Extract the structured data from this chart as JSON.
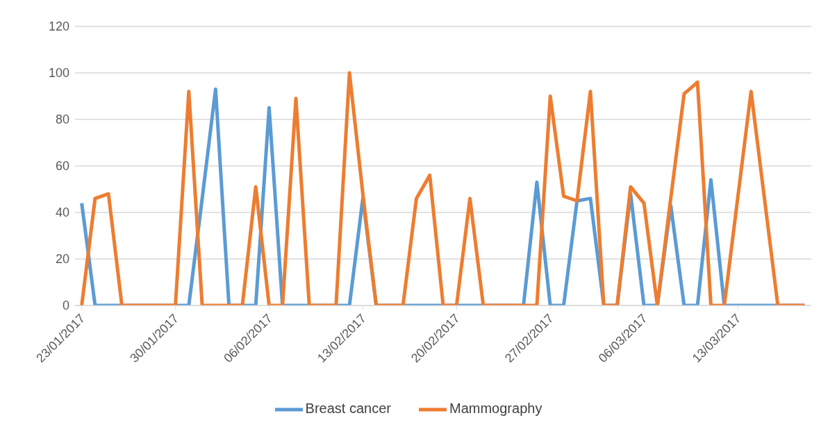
{
  "chart_data": {
    "type": "line",
    "x": [
      "2017-01-23",
      "2017-01-24",
      "2017-01-25",
      "2017-01-26",
      "2017-01-27",
      "2017-01-28",
      "2017-01-29",
      "2017-01-30",
      "2017-01-31",
      "2017-02-01",
      "2017-02-02",
      "2017-02-03",
      "2017-02-04",
      "2017-02-05",
      "2017-02-06",
      "2017-02-07",
      "2017-02-08",
      "2017-02-09",
      "2017-02-10",
      "2017-02-11",
      "2017-02-12",
      "2017-02-13",
      "2017-02-14",
      "2017-02-15",
      "2017-02-16",
      "2017-02-17",
      "2017-02-18",
      "2017-02-19",
      "2017-02-20",
      "2017-02-21",
      "2017-02-22",
      "2017-02-23",
      "2017-02-24",
      "2017-02-25",
      "2017-02-26",
      "2017-02-27",
      "2017-02-28",
      "2017-03-01",
      "2017-03-02",
      "2017-03-03",
      "2017-03-04",
      "2017-03-05",
      "2017-03-06",
      "2017-03-07",
      "2017-03-08",
      "2017-03-09",
      "2017-03-10",
      "2017-03-11",
      "2017-03-12",
      "2017-03-13",
      "2017-03-14",
      "2017-03-15",
      "2017-03-16",
      "2017-03-17",
      "2017-03-18"
    ],
    "series": [
      {
        "name": "Breast cancer",
        "color": "#5b9bd5",
        "values": [
          44,
          0,
          0,
          0,
          0,
          0,
          0,
          0,
          0,
          46,
          93,
          0,
          0,
          0,
          85,
          0,
          0,
          0,
          0,
          0,
          0,
          46,
          0,
          0,
          0,
          0,
          0,
          0,
          0,
          0,
          0,
          0,
          0,
          0,
          53,
          0,
          0,
          45,
          46,
          0,
          0,
          48,
          0,
          0,
          43,
          0,
          0,
          54,
          0,
          0,
          0,
          0,
          0,
          0,
          0
        ]
      },
      {
        "name": "Mammography",
        "color": "#ed7d31",
        "values": [
          0,
          46,
          48,
          0,
          0,
          0,
          0,
          0,
          92,
          0,
          0,
          0,
          0,
          51,
          0,
          0,
          89,
          0,
          0,
          0,
          100,
          48,
          0,
          0,
          0,
          46,
          56,
          0,
          0,
          46,
          0,
          0,
          0,
          0,
          0,
          90,
          47,
          45,
          92,
          0,
          0,
          51,
          44,
          0,
          46,
          91,
          96,
          0,
          0,
          46,
          92,
          46,
          0,
          0,
          0
        ]
      }
    ],
    "xlim": [
      "2017-01-22T12:00",
      "2017-03-18T12:00"
    ],
    "xticks": [
      {
        "value": "2017-01-23",
        "label": "23/01/2017"
      },
      {
        "value": "2017-01-30",
        "label": "30/01/2017"
      },
      {
        "value": "2017-02-06",
        "label": "06/02/2017"
      },
      {
        "value": "2017-02-13",
        "label": "13/02/2017"
      },
      {
        "value": "2017-02-20",
        "label": "20/02/2017"
      },
      {
        "value": "2017-02-27",
        "label": "27/02/2017"
      },
      {
        "value": "2017-03-06",
        "label": "06/03/2017"
      },
      {
        "value": "2017-03-13",
        "label": "13/03/2017"
      }
    ],
    "ylim": [
      0,
      120
    ],
    "yticks": [
      0,
      20,
      40,
      60,
      80,
      100,
      120
    ],
    "grid": "y",
    "legend": "bottom",
    "marker": "none",
    "line_style": "solid"
  }
}
